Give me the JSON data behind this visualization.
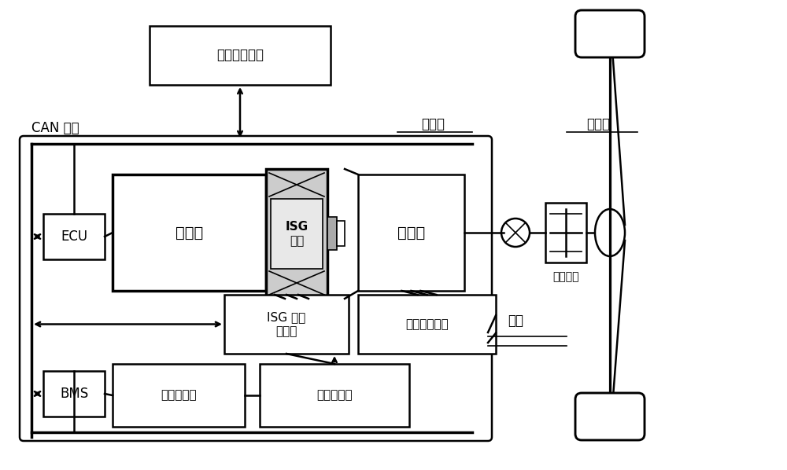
{
  "bg_color": "#ffffff",
  "lw_thick": 2.5,
  "lw_med": 1.8,
  "lw_thin": 1.2,
  "labels": {
    "energy_mgmt": "能量管理系统",
    "can_bus": "CAN 总线",
    "ecu": "ECU",
    "engine": "发动机",
    "isg_motor": "ISG\n电机",
    "e_motor": "电动机",
    "isg_controller": "ISG 电机\n控制器",
    "motor_controller": "电动机控制器",
    "bms": "BMS",
    "battery": "动力电池箱",
    "hv_box": "高压配电箱",
    "clutch": "离合器",
    "diff": "差速器",
    "main_reducer": "主减速器",
    "cable": "电缆"
  },
  "fontsizes": {
    "large": 14,
    "medium": 12,
    "small": 11,
    "xsmall": 10
  }
}
